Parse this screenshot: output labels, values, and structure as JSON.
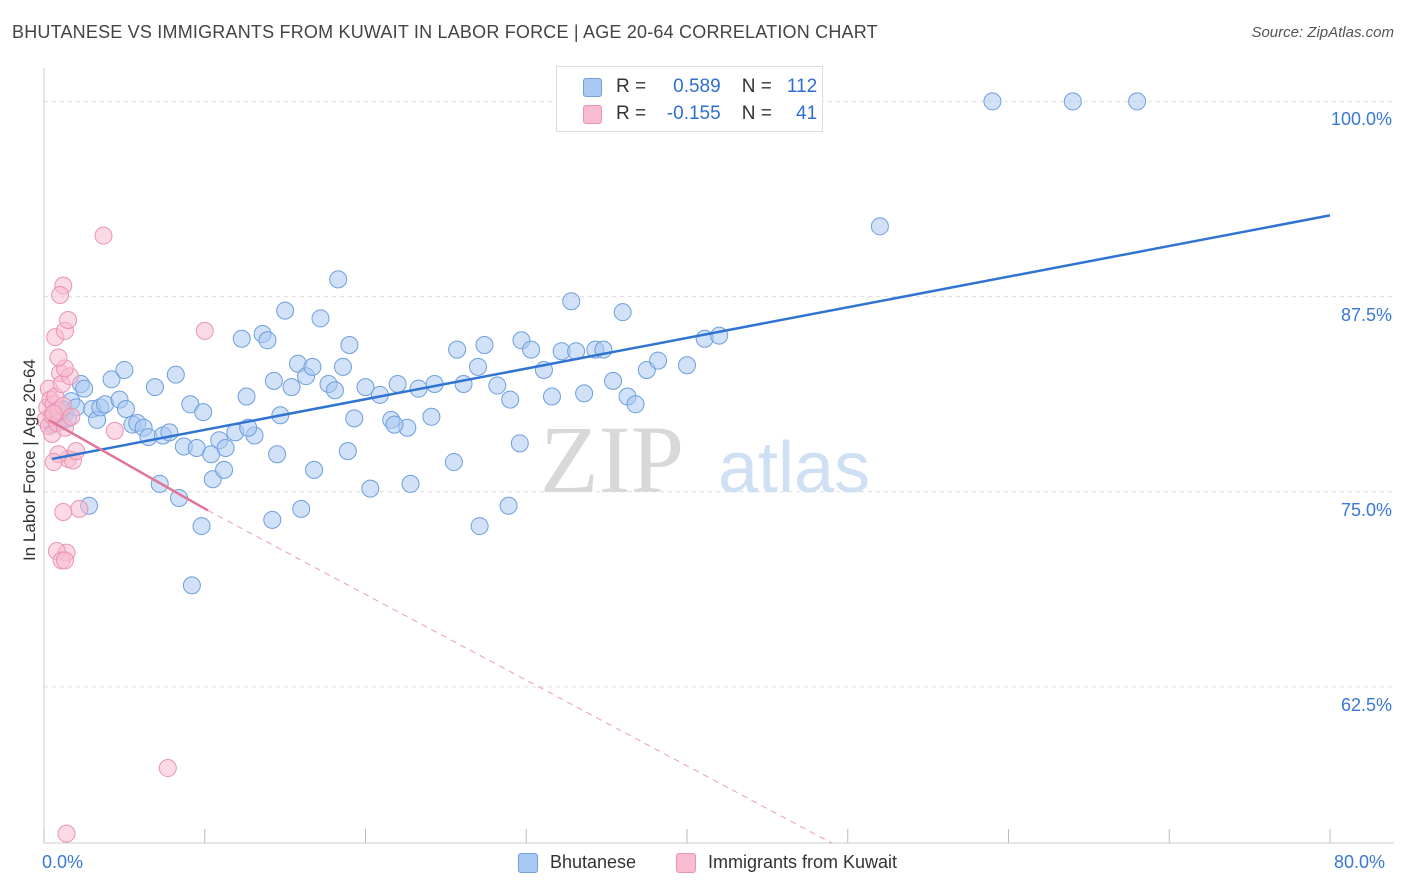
{
  "header": {
    "title": "BHUTANESE VS IMMIGRANTS FROM KUWAIT IN LABOR FORCE | AGE 20-64 CORRELATION CHART",
    "source": "Source: ZipAtlas.com"
  },
  "legend": {
    "rows": [
      {
        "r_label": "R =",
        "r_value": "0.589",
        "n_label": "N =",
        "n_value": "112",
        "color": "#a9c8f2"
      },
      {
        "r_label": "R =",
        "r_value": "-0.155",
        "n_label": "N =",
        "n_value": "41",
        "color": "#f7bcd0"
      }
    ]
  },
  "bottom_legend": [
    "Bhutanese",
    "Immigrants from Kuwait"
  ],
  "watermark": {
    "zip": "ZIP",
    "atlas": "atlas"
  },
  "colors": {
    "blue_line": "#2f74d0",
    "blue_fill": "#a9c8f2",
    "blue_stroke": "#6f9fdc",
    "pink_line": "#e0749a",
    "pink_fill": "#f7bcd0",
    "pink_stroke": "#ea93b2",
    "grid": "#dddddd",
    "tick_label": "#3a78d6"
  },
  "chart_data": {
    "type": "scatter",
    "title": "BHUTANESE VS IMMIGRANTS FROM KUWAIT IN LABOR FORCE | AGE 20-64 CORRELATION CHART",
    "xlabel": "",
    "ylabel": "In Labor Force | Age 20-64",
    "xlim": [
      0,
      80
    ],
    "ylim": [
      52.5,
      101.5
    ],
    "x_tick_labels": [
      "0.0%",
      "80.0%"
    ],
    "y_ticks": [
      62.5,
      75.0,
      87.5,
      100.0
    ],
    "y_tick_labels": [
      "62.5%",
      "75.0%",
      "87.5%",
      "100.0%"
    ],
    "grid": true,
    "series": [
      {
        "name": "Bhutanese",
        "r": 0.589,
        "n": 112,
        "trend": {
          "x": [
            0.5,
            80
          ],
          "y": [
            77.1,
            92.7
          ]
        },
        "points": [
          [
            0.5,
            79.3
          ],
          [
            0.7,
            80.2
          ],
          [
            0.9,
            79.8
          ],
          [
            1.0,
            80.1
          ],
          [
            1.1,
            79.5
          ],
          [
            1.3,
            80.0
          ],
          [
            1.5,
            79.7
          ],
          [
            1.7,
            80.8
          ],
          [
            2.0,
            80.4
          ],
          [
            2.3,
            81.9
          ],
          [
            2.5,
            81.6
          ],
          [
            3.0,
            80.3
          ],
          [
            3.3,
            79.6
          ],
          [
            3.5,
            80.4
          ],
          [
            3.8,
            80.6
          ],
          [
            4.2,
            82.2
          ],
          [
            4.7,
            80.9
          ],
          [
            5.1,
            80.3
          ],
          [
            5.5,
            79.3
          ],
          [
            5.8,
            79.4
          ],
          [
            6.2,
            79.1
          ],
          [
            6.5,
            78.5
          ],
          [
            6.9,
            81.7
          ],
          [
            7.4,
            78.6
          ],
          [
            7.8,
            78.8
          ],
          [
            8.2,
            82.5
          ],
          [
            8.7,
            77.9
          ],
          [
            9.1,
            80.6
          ],
          [
            9.5,
            77.8
          ],
          [
            9.9,
            80.1
          ],
          [
            10.4,
            77.4
          ],
          [
            10.9,
            78.3
          ],
          [
            11.3,
            77.8
          ],
          [
            11.9,
            78.8
          ],
          [
            12.3,
            84.8
          ],
          [
            12.6,
            81.1
          ],
          [
            13.1,
            78.6
          ],
          [
            13.6,
            85.1
          ],
          [
            13.9,
            84.7
          ],
          [
            14.3,
            82.1
          ],
          [
            14.5,
            77.4
          ],
          [
            15.0,
            86.6
          ],
          [
            15.4,
            81.7
          ],
          [
            15.8,
            83.2
          ],
          [
            16.3,
            82.4
          ],
          [
            16.7,
            83.0
          ],
          [
            17.2,
            86.1
          ],
          [
            17.7,
            81.9
          ],
          [
            18.1,
            81.5
          ],
          [
            18.6,
            83.0
          ],
          [
            19.0,
            84.4
          ],
          [
            19.3,
            79.7
          ],
          [
            20.0,
            81.7
          ],
          [
            20.9,
            81.2
          ],
          [
            21.6,
            79.6
          ],
          [
            22.0,
            81.9
          ],
          [
            22.6,
            79.1
          ],
          [
            23.3,
            81.6
          ],
          [
            24.3,
            81.9
          ],
          [
            25.7,
            84.1
          ],
          [
            26.1,
            81.9
          ],
          [
            27.0,
            83.0
          ],
          [
            27.4,
            84.4
          ],
          [
            28.2,
            81.8
          ],
          [
            29.0,
            80.9
          ],
          [
            29.7,
            84.7
          ],
          [
            30.3,
            84.1
          ],
          [
            31.1,
            82.8
          ],
          [
            32.2,
            84.0
          ],
          [
            33.1,
            84.0
          ],
          [
            33.6,
            81.3
          ],
          [
            34.3,
            84.1
          ],
          [
            34.8,
            84.1
          ],
          [
            35.4,
            82.1
          ],
          [
            36.3,
            81.1
          ],
          [
            36.8,
            80.6
          ],
          [
            37.5,
            82.8
          ],
          [
            38.2,
            83.4
          ],
          [
            40.0,
            83.1
          ],
          [
            41.1,
            84.8
          ],
          [
            42.0,
            85.0
          ],
          [
            1.1,
            80.3
          ],
          [
            2.8,
            74.1
          ],
          [
            5.0,
            82.8
          ],
          [
            7.2,
            75.5
          ],
          [
            8.4,
            74.6
          ],
          [
            9.2,
            69.0
          ],
          [
            10.5,
            75.8
          ],
          [
            11.2,
            76.4
          ],
          [
            12.7,
            79.1
          ],
          [
            14.2,
            73.2
          ],
          [
            16.0,
            73.9
          ],
          [
            16.8,
            76.4
          ],
          [
            18.9,
            77.6
          ],
          [
            20.3,
            75.2
          ],
          [
            21.8,
            79.3
          ],
          [
            24.1,
            79.8
          ],
          [
            25.5,
            76.9
          ],
          [
            27.1,
            72.8
          ],
          [
            28.9,
            74.1
          ],
          [
            29.6,
            78.1
          ],
          [
            31.6,
            81.1
          ],
          [
            9.8,
            72.8
          ],
          [
            14.7,
            79.9
          ],
          [
            22.8,
            75.5
          ],
          [
            18.3,
            88.6
          ],
          [
            32.8,
            87.2
          ],
          [
            36.0,
            86.5
          ],
          [
            52.0,
            92.0
          ],
          [
            59.0,
            100.0
          ],
          [
            64.0,
            100.0
          ],
          [
            68.0,
            100.0
          ]
        ]
      },
      {
        "name": "Immigrants from Kuwait",
        "r": -0.155,
        "n": 41,
        "trend": {
          "x": [
            0.3,
            10.2
          ],
          "y": [
            79.6,
            73.8
          ]
        },
        "trend_dashed": {
          "x": [
            10.2,
            49.0
          ],
          "y": [
            73.8,
            52.5
          ]
        },
        "points": [
          [
            0.1,
            79.6
          ],
          [
            0.2,
            80.4
          ],
          [
            0.3,
            81.6
          ],
          [
            0.3,
            79.2
          ],
          [
            0.4,
            80.9
          ],
          [
            0.5,
            79.9
          ],
          [
            0.5,
            78.7
          ],
          [
            0.6,
            80.6
          ],
          [
            0.7,
            81.1
          ],
          [
            0.8,
            79.4
          ],
          [
            0.9,
            80.2
          ],
          [
            1.0,
            82.6
          ],
          [
            1.1,
            81.9
          ],
          [
            1.2,
            80.5
          ],
          [
            1.3,
            79.1
          ],
          [
            1.5,
            77.1
          ],
          [
            1.6,
            82.4
          ],
          [
            1.8,
            77.0
          ],
          [
            2.0,
            77.6
          ],
          [
            2.2,
            73.9
          ],
          [
            0.9,
            77.4
          ],
          [
            0.6,
            76.9
          ],
          [
            1.2,
            73.7
          ],
          [
            1.4,
            71.1
          ],
          [
            0.8,
            71.2
          ],
          [
            1.1,
            70.6
          ],
          [
            1.3,
            70.6
          ],
          [
            0.7,
            84.9
          ],
          [
            1.3,
            85.3
          ],
          [
            1.5,
            86.0
          ],
          [
            1.2,
            88.2
          ],
          [
            1.0,
            87.6
          ],
          [
            3.7,
            91.4
          ],
          [
            4.4,
            78.9
          ],
          [
            10.0,
            85.3
          ],
          [
            1.3,
            82.9
          ],
          [
            0.9,
            83.6
          ],
          [
            7.7,
            57.3
          ],
          [
            1.4,
            53.1
          ],
          [
            0.6,
            80.0
          ],
          [
            1.7,
            79.8
          ]
        ]
      }
    ]
  }
}
